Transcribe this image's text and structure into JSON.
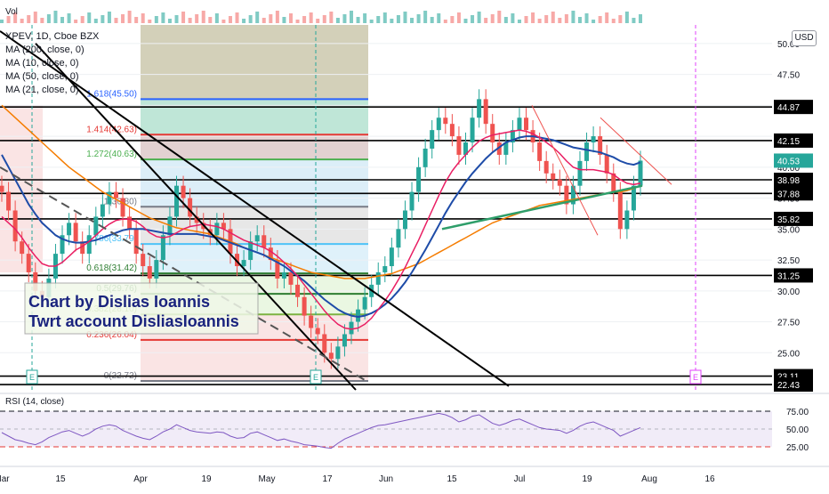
{
  "header": {
    "volume_label": "Vol",
    "symbol_line": "XPEV, 1D, Cboe BZX",
    "currency_button": "USD"
  },
  "indicators": [
    {
      "label": "MA (200, close, 0)",
      "color": "#e53935"
    },
    {
      "label": "MA (10, close, 0)",
      "color": "#e91e63"
    },
    {
      "label": "MA (50, close, 0)",
      "color": "#f57c00"
    },
    {
      "label": "MA (21, close, 0)",
      "color": "#1e4ca8"
    }
  ],
  "rsi_label": "RSI (14, close)",
  "watermark": {
    "line1": "Chart by Dislias Ioannis",
    "line2": "Twrt account DisliasIoannis"
  },
  "colors": {
    "up": "#26a69a",
    "down": "#ef5350",
    "ma10": "#e91e63",
    "ma21": "#1e4ca8",
    "ma50": "#f57c00",
    "rsi": "#7e57c2",
    "level": "#000000",
    "trend": "#2e9e6a"
  },
  "chart_data": {
    "type": "candlestick",
    "ylim": [
      22,
      51.5
    ],
    "price_axis_ticks": [
      "50.00",
      "47.50",
      "45.00",
      "42.50",
      "40.00",
      "37.50",
      "35.00",
      "32.50",
      "30.00",
      "27.50",
      "25.00",
      "22.50"
    ],
    "price_axis_values": [
      50,
      47.5,
      45,
      42.5,
      40,
      37.5,
      35,
      32.5,
      30,
      27.5,
      25,
      22.5
    ],
    "time_axis_labels": [
      "Mar",
      "15",
      "Apr",
      "19",
      "May",
      "17",
      "Jun",
      "15",
      "Jul",
      "19",
      "Aug",
      "16"
    ],
    "horizontal_levels": [
      {
        "label": "44.87",
        "value": 44.87
      },
      {
        "label": "42.15",
        "value": 42.15
      },
      {
        "label": "38.98",
        "value": 38.98
      },
      {
        "label": "37.88",
        "value": 37.88
      },
      {
        "label": "35.82",
        "value": 35.82
      },
      {
        "label": "31.25",
        "value": 31.25
      },
      {
        "label": "23.11",
        "value": 23.11
      },
      {
        "label": "22.43",
        "value": 22.43
      }
    ],
    "current_price": {
      "label": "40.53",
      "value": 40.53
    },
    "fibonacci": [
      {
        "label": "1.618(45.50)",
        "value": 45.5,
        "color": "#2962ff"
      },
      {
        "label": "1.414(42.63)",
        "value": 42.63,
        "color": "#e53935"
      },
      {
        "label": "1.272(40.63)",
        "value": 40.63,
        "color": "#4caf50"
      },
      {
        "label": "1(36.80)",
        "value": 36.8,
        "color": "#787b86"
      },
      {
        "label": "0.786(33.79)",
        "value": 33.79,
        "color": "#4fc3f7"
      },
      {
        "label": "0.618(31.42)",
        "value": 31.42,
        "color": "#2e7d32"
      },
      {
        "label": "0.5(29.76)",
        "value": 29.76,
        "color": "#2e7d32"
      },
      {
        "label": "0.382(28.10)",
        "value": 28.1,
        "color": "#7cb342"
      },
      {
        "label": "0.236(26.04)",
        "value": 26.04,
        "color": "#e53935"
      },
      {
        "label": "0(22.72)",
        "value": 22.72,
        "color": "#787b86"
      }
    ],
    "earnings_markers": [
      "E",
      "E",
      "E"
    ],
    "closes": [
      38,
      36.5,
      34,
      33,
      31.5,
      30,
      29.5,
      31,
      33,
      34.5,
      35.5,
      34,
      33,
      34.5,
      36,
      37,
      38,
      37.5,
      36,
      35,
      33,
      32,
      31,
      32.5,
      34.5,
      36,
      38.5,
      37.5,
      36,
      35.5,
      35,
      34.5,
      35.5,
      35,
      33,
      32,
      32.5,
      34,
      34.5,
      33.5,
      32.5,
      31,
      31.5,
      30.5,
      29.5,
      28,
      27,
      26.5,
      25,
      24.5,
      25.5,
      26.5,
      27.5,
      28.5,
      29.5,
      30.5,
      31.5,
      32,
      33.5,
      35,
      36.5,
      38,
      40,
      41.5,
      43,
      44,
      43.5,
      42.5,
      41,
      42,
      44,
      45.5,
      43.5,
      42,
      41,
      42,
      43,
      44,
      43,
      42,
      40.5,
      39.5,
      39,
      38.5,
      37,
      38.5,
      40.5,
      42,
      42.5,
      41,
      39.5,
      38,
      35,
      36.5,
      38.5,
      40.53
    ],
    "ma10": [
      36,
      35.5,
      35,
      34.3,
      33.5,
      32.8,
      32.2,
      32,
      32,
      32.3,
      32.8,
      33.3,
      33.6,
      34,
      34.5,
      35,
      35.4,
      35.7,
      35.8,
      35.8,
      35.6,
      35.2,
      34.7,
      34.4,
      34.3,
      34.4,
      34.7,
      35,
      35.2,
      35.3,
      35.4,
      35.3,
      35.2,
      35,
      34.7,
      34.4,
      34.1,
      33.9,
      33.7,
      33.5,
      33.2,
      32.8,
      32.3,
      31.8,
      31.2,
      30.5,
      29.8,
      29.1,
      28.4,
      27.8,
      27.3,
      27,
      26.9,
      27,
      27.3,
      27.8,
      28.5,
      29.2,
      30,
      30.9,
      31.9,
      33,
      34.1,
      35.3,
      36.5,
      37.7,
      38.8,
      39.7,
      40.4,
      41,
      41.6,
      42.1,
      42.4,
      42.6,
      42.7,
      42.8,
      42.9,
      43,
      42.9,
      42.7,
      42.4,
      42,
      41.6,
      41.1,
      40.5,
      40,
      39.8,
      39.8,
      39.8,
      39.7,
      39.6,
      39.4,
      39,
      38.7,
      38.6,
      38.7
    ],
    "ma21": [
      41,
      40,
      39,
      38,
      37,
      36.2,
      35.5,
      35,
      34.5,
      34.2,
      34,
      33.9,
      33.9,
      34,
      34.1,
      34.3,
      34.5,
      34.7,
      34.9,
      35,
      35,
      35,
      34.9,
      34.8,
      34.7,
      34.6,
      34.6,
      34.6,
      34.6,
      34.6,
      34.5,
      34.4,
      34.3,
      34.1,
      33.9,
      33.7,
      33.5,
      33.3,
      33.1,
      32.9,
      32.6,
      32.3,
      32,
      31.6,
      31.2,
      30.8,
      30.3,
      29.8,
      29.3,
      28.9,
      28.5,
      28.2,
      28,
      27.9,
      28,
      28.2,
      28.5,
      28.9,
      29.4,
      30,
      30.7,
      31.5,
      32.4,
      33.3,
      34.3,
      35.3,
      36.3,
      37.2,
      38,
      38.8,
      39.5,
      40.1,
      40.7,
      41.2,
      41.6,
      42,
      42.2,
      42.4,
      42.5,
      42.5,
      42.4,
      42.3,
      42.2,
      42,
      41.8,
      41.6,
      41.5,
      41.4,
      41.3,
      41.2,
      41,
      40.8,
      40.5,
      40.3,
      40.2,
      40.4
    ],
    "ma50": [
      45,
      44.5,
      44,
      43.5,
      43,
      42.5,
      42,
      41.5,
      41,
      40.5,
      40,
      39.6,
      39.2,
      38.8,
      38.4,
      38,
      37.7,
      37.4,
      37.1,
      36.8,
      36.5,
      36.2,
      35.9,
      35.7,
      35.5,
      35.3,
      35.1,
      35,
      34.9,
      34.8,
      34.7,
      34.6,
      34.4,
      34.2,
      34,
      33.8,
      33.5,
      33.3,
      33.1,
      32.9,
      32.7,
      32.5,
      32.3,
      32.1,
      31.9,
      31.7,
      31.5,
      31.4,
      31.3,
      31.2,
      31.1,
      31,
      31,
      31,
      31,
      31.1,
      31.2,
      31.3,
      31.4,
      31.6,
      31.8,
      32,
      32.2,
      32.5,
      32.8,
      33.1,
      33.4,
      33.7,
      34,
      34.3,
      34.6,
      34.9,
      35.2,
      35.5,
      35.7,
      35.9,
      36.1,
      36.3,
      36.5,
      36.7,
      36.9,
      37,
      37.1,
      37.2,
      37.3,
      37.4,
      37.5,
      37.6,
      37.7,
      37.8,
      37.9,
      38,
      38,
      38.1,
      38.3,
      38.5
    ],
    "rsi_axis_ticks": [
      "75.00",
      "50.00",
      "25.00"
    ],
    "rsi_axis_values": [
      75,
      50,
      25
    ],
    "rsi": [
      45,
      40,
      35,
      33,
      30,
      28,
      32,
      38,
      42,
      46,
      48,
      44,
      40,
      44,
      50,
      54,
      56,
      54,
      48,
      44,
      40,
      37,
      35,
      40,
      46,
      50,
      56,
      52,
      48,
      46,
      45,
      44,
      46,
      45,
      40,
      37,
      38,
      44,
      46,
      42,
      38,
      34,
      36,
      33,
      31,
      28,
      27,
      26,
      24,
      23,
      30,
      36,
      40,
      44,
      48,
      52,
      55,
      56,
      58,
      60,
      62,
      64,
      66,
      68,
      70,
      72,
      70,
      66,
      60,
      63,
      68,
      70,
      64,
      58,
      55,
      58,
      62,
      64,
      60,
      56,
      52,
      50,
      49,
      48,
      44,
      48,
      54,
      58,
      60,
      56,
      52,
      48,
      40,
      44,
      48,
      52
    ]
  }
}
